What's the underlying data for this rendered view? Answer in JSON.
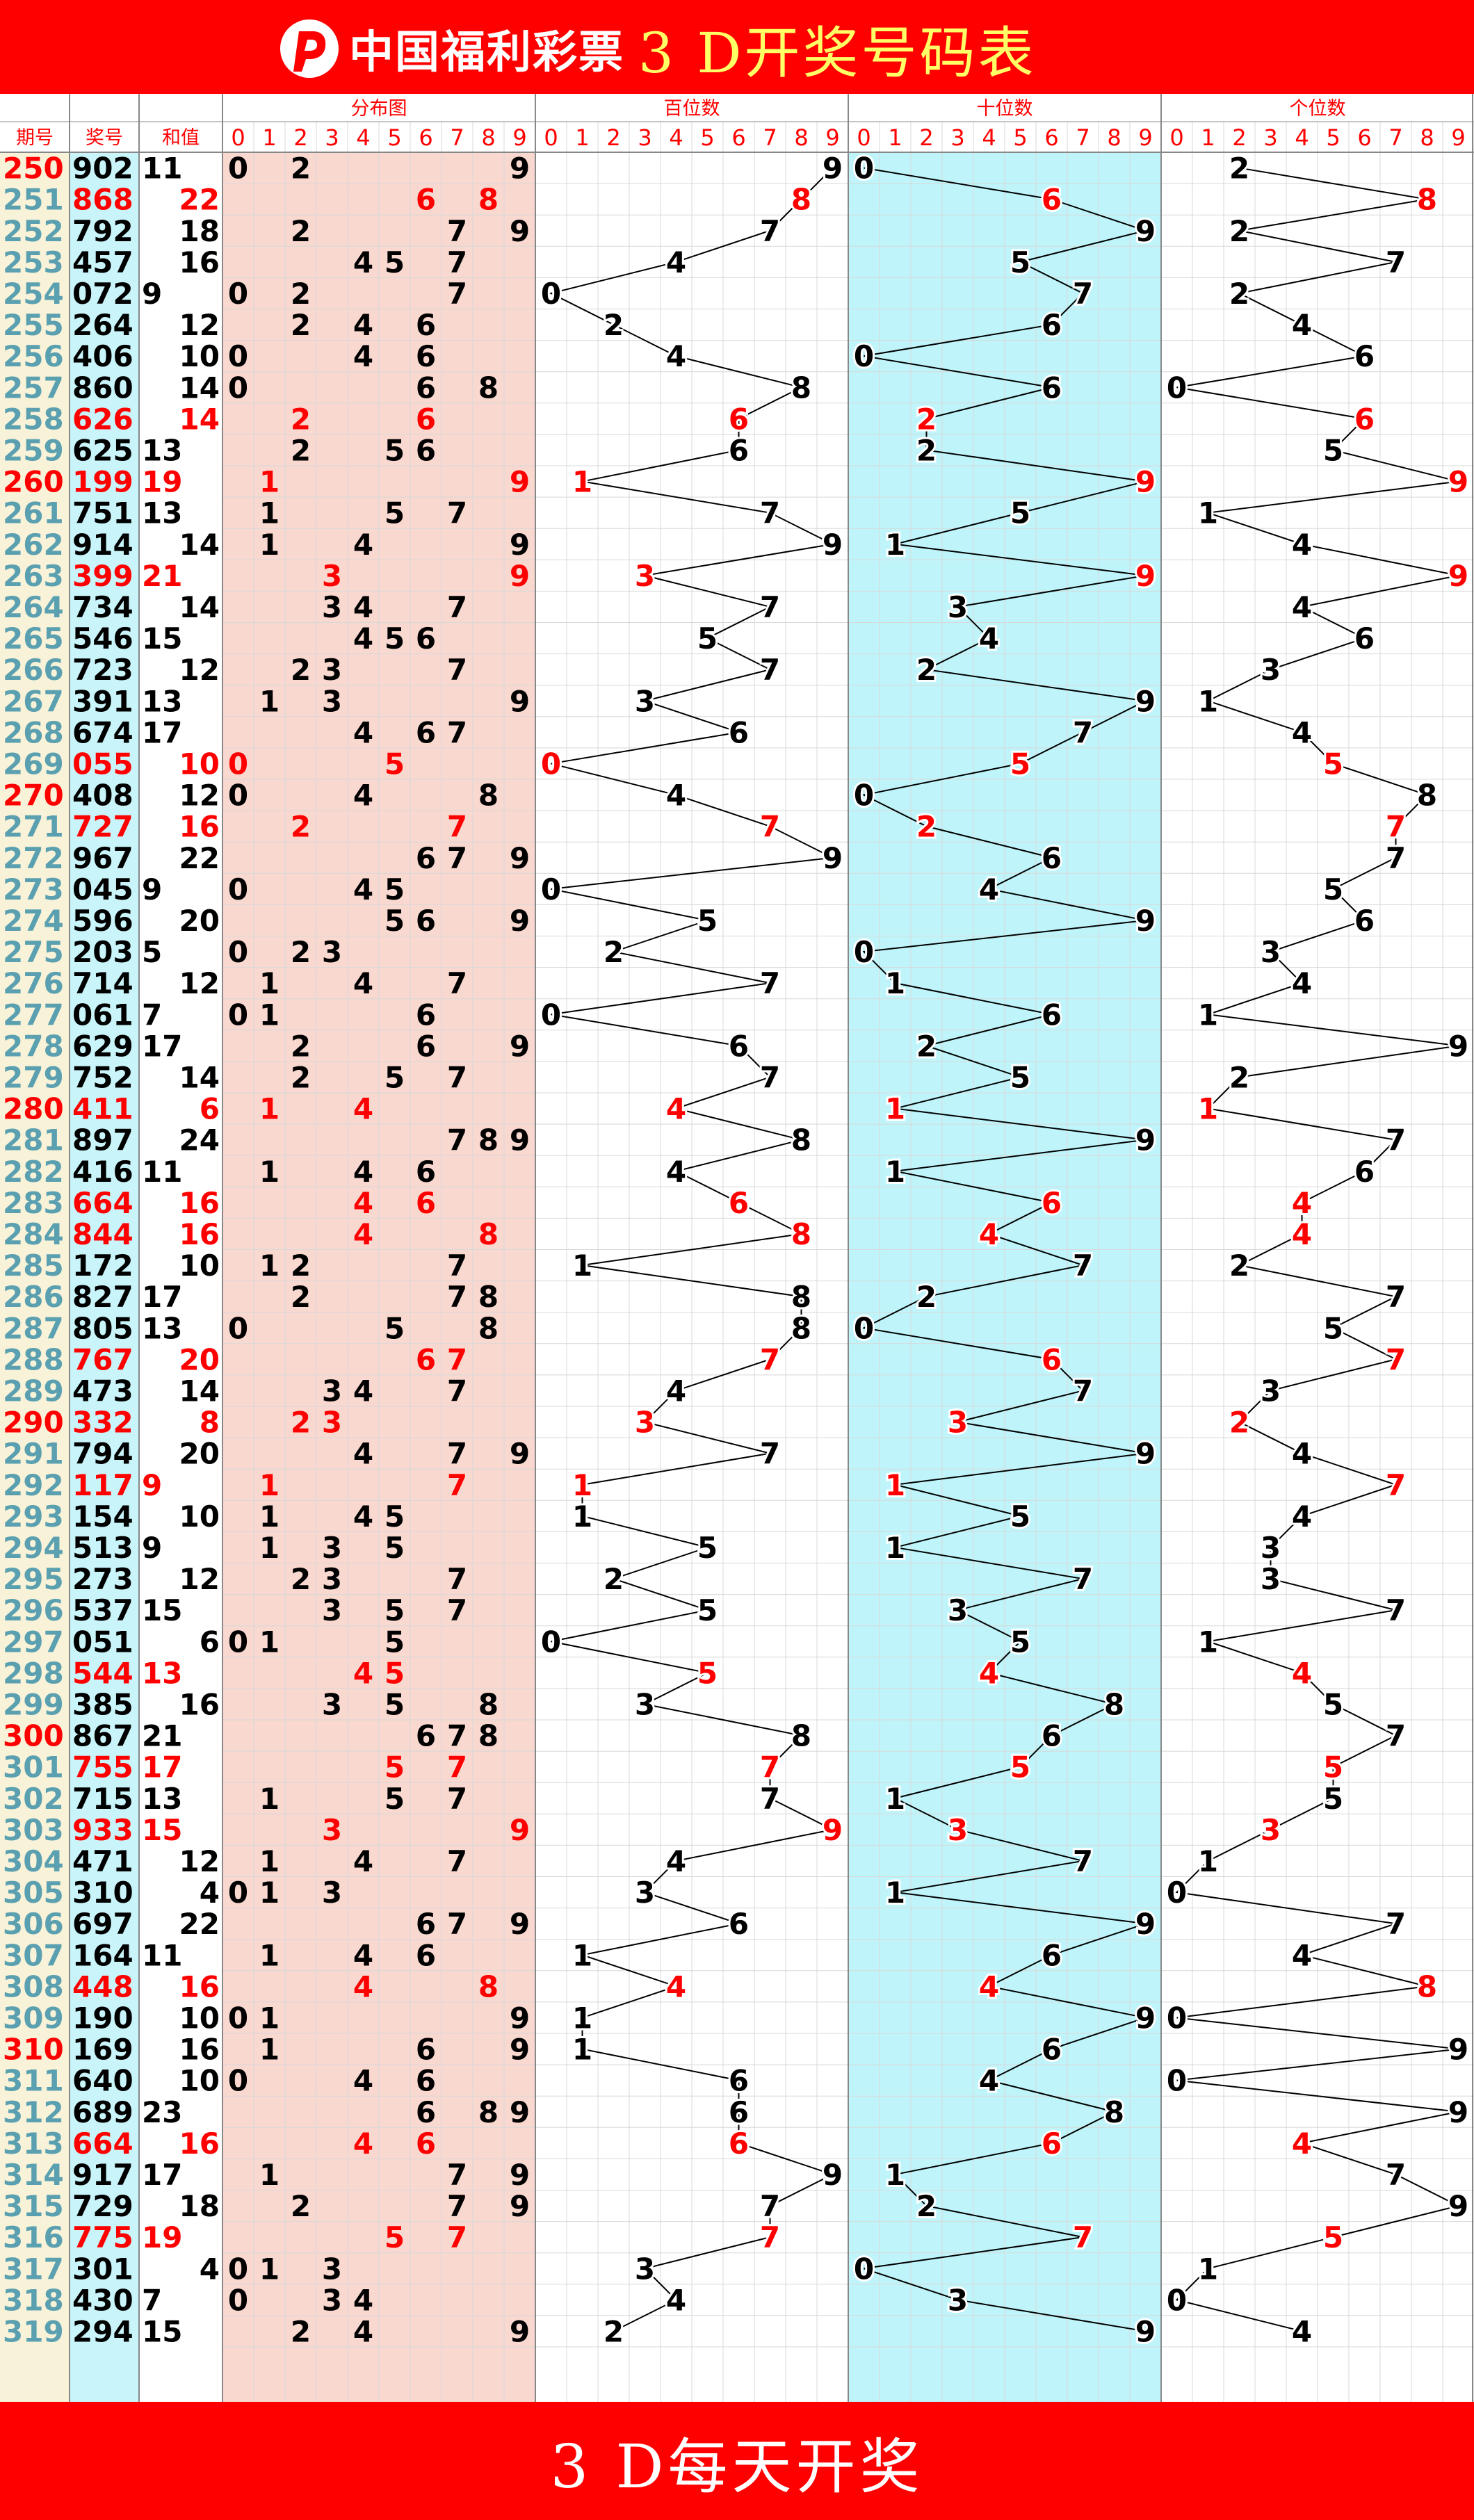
{
  "header": {
    "logo_text": "中国福利彩票",
    "title": "3 D开奖号码表"
  },
  "footer": {
    "text": "3 D每天开奖"
  },
  "columns": {
    "period": "期号",
    "draw": "奖号",
    "sum": "和值",
    "distribution": "分布图",
    "hundreds": "百位数",
    "tens": "十位数",
    "ones": "个位数",
    "digits": [
      "0",
      "1",
      "2",
      "3",
      "4",
      "5",
      "6",
      "7",
      "8",
      "9"
    ]
  },
  "colors": {
    "header_bg": "#ff0000",
    "title": "#ffff66",
    "highlight": "#ff0000",
    "period_text": "#5aa0b0",
    "period_bg": "#f7f2d8",
    "draw_bg": "#c9f5fa",
    "distribution_bg": "#f9d8d0",
    "tens_bg": "#bff5fa"
  },
  "chart_data": {
    "type": "table",
    "sum_layout": "odd sums are printed left-aligned and even sums right-aligned in the sum column",
    "rows": [
      {
        "period": "250",
        "draw": "902",
        "sum": "11",
        "red": false,
        "period_red": true
      },
      {
        "period": "251",
        "draw": "868",
        "sum": "22",
        "red": true,
        "period_red": false
      },
      {
        "period": "252",
        "draw": "792",
        "sum": "18",
        "red": false,
        "period_red": false
      },
      {
        "period": "253",
        "draw": "457",
        "sum": "16",
        "red": false,
        "period_red": false
      },
      {
        "period": "254",
        "draw": "072",
        "sum": "9",
        "red": false,
        "period_red": false
      },
      {
        "period": "255",
        "draw": "264",
        "sum": "12",
        "red": false,
        "period_red": false
      },
      {
        "period": "256",
        "draw": "406",
        "sum": "10",
        "red": false,
        "period_red": false
      },
      {
        "period": "257",
        "draw": "860",
        "sum": "14",
        "red": false,
        "period_red": false
      },
      {
        "period": "258",
        "draw": "626",
        "sum": "14",
        "red": true,
        "period_red": false
      },
      {
        "period": "259",
        "draw": "625",
        "sum": "13",
        "red": false,
        "period_red": false
      },
      {
        "period": "260",
        "draw": "199",
        "sum": "19",
        "red": true,
        "period_red": true
      },
      {
        "period": "261",
        "draw": "751",
        "sum": "13",
        "red": false,
        "period_red": false
      },
      {
        "period": "262",
        "draw": "914",
        "sum": "14",
        "red": false,
        "period_red": false
      },
      {
        "period": "263",
        "draw": "399",
        "sum": "21",
        "red": true,
        "period_red": false
      },
      {
        "period": "264",
        "draw": "734",
        "sum": "14",
        "red": false,
        "period_red": false
      },
      {
        "period": "265",
        "draw": "546",
        "sum": "15",
        "red": false,
        "period_red": false
      },
      {
        "period": "266",
        "draw": "723",
        "sum": "12",
        "red": false,
        "period_red": false
      },
      {
        "period": "267",
        "draw": "391",
        "sum": "13",
        "red": false,
        "period_red": false
      },
      {
        "period": "268",
        "draw": "674",
        "sum": "17",
        "red": false,
        "period_red": false
      },
      {
        "period": "269",
        "draw": "055",
        "sum": "10",
        "red": true,
        "period_red": false
      },
      {
        "period": "270",
        "draw": "408",
        "sum": "12",
        "red": false,
        "period_red": true
      },
      {
        "period": "271",
        "draw": "727",
        "sum": "16",
        "red": true,
        "period_red": false
      },
      {
        "period": "272",
        "draw": "967",
        "sum": "22",
        "red": false,
        "period_red": false
      },
      {
        "period": "273",
        "draw": "045",
        "sum": "9",
        "red": false,
        "period_red": false
      },
      {
        "period": "274",
        "draw": "596",
        "sum": "20",
        "red": false,
        "period_red": false
      },
      {
        "period": "275",
        "draw": "203",
        "sum": "5",
        "red": false,
        "period_red": false
      },
      {
        "period": "276",
        "draw": "714",
        "sum": "12",
        "red": false,
        "period_red": false
      },
      {
        "period": "277",
        "draw": "061",
        "sum": "7",
        "red": false,
        "period_red": false
      },
      {
        "period": "278",
        "draw": "629",
        "sum": "17",
        "red": false,
        "period_red": false
      },
      {
        "period": "279",
        "draw": "752",
        "sum": "14",
        "red": false,
        "period_red": false
      },
      {
        "period": "280",
        "draw": "411",
        "sum": "6",
        "red": true,
        "period_red": true
      },
      {
        "period": "281",
        "draw": "897",
        "sum": "24",
        "red": false,
        "period_red": false
      },
      {
        "period": "282",
        "draw": "416",
        "sum": "11",
        "red": false,
        "period_red": false
      },
      {
        "period": "283",
        "draw": "664",
        "sum": "16",
        "red": true,
        "period_red": false
      },
      {
        "period": "284",
        "draw": "844",
        "sum": "16",
        "red": true,
        "period_red": false
      },
      {
        "period": "285",
        "draw": "172",
        "sum": "10",
        "red": false,
        "period_red": false
      },
      {
        "period": "286",
        "draw": "827",
        "sum": "17",
        "red": false,
        "period_red": false
      },
      {
        "period": "287",
        "draw": "805",
        "sum": "13",
        "red": false,
        "period_red": false
      },
      {
        "period": "288",
        "draw": "767",
        "sum": "20",
        "red": true,
        "period_red": false
      },
      {
        "period": "289",
        "draw": "473",
        "sum": "14",
        "red": false,
        "period_red": false
      },
      {
        "period": "290",
        "draw": "332",
        "sum": "8",
        "red": true,
        "period_red": true
      },
      {
        "period": "291",
        "draw": "794",
        "sum": "20",
        "red": false,
        "period_red": false
      },
      {
        "period": "292",
        "draw": "117",
        "sum": "9",
        "red": true,
        "period_red": false
      },
      {
        "period": "293",
        "draw": "154",
        "sum": "10",
        "red": false,
        "period_red": false
      },
      {
        "period": "294",
        "draw": "513",
        "sum": "9",
        "red": false,
        "period_red": false
      },
      {
        "period": "295",
        "draw": "273",
        "sum": "12",
        "red": false,
        "period_red": false
      },
      {
        "period": "296",
        "draw": "537",
        "sum": "15",
        "red": false,
        "period_red": false
      },
      {
        "period": "297",
        "draw": "051",
        "sum": "6",
        "red": false,
        "period_red": false
      },
      {
        "period": "298",
        "draw": "544",
        "sum": "13",
        "red": true,
        "period_red": false
      },
      {
        "period": "299",
        "draw": "385",
        "sum": "16",
        "red": false,
        "period_red": false
      },
      {
        "period": "300",
        "draw": "867",
        "sum": "21",
        "red": false,
        "period_red": true
      },
      {
        "period": "301",
        "draw": "755",
        "sum": "17",
        "red": true,
        "period_red": false
      },
      {
        "period": "302",
        "draw": "715",
        "sum": "13",
        "red": false,
        "period_red": false
      },
      {
        "period": "303",
        "draw": "933",
        "sum": "15",
        "red": true,
        "period_red": false
      },
      {
        "period": "304",
        "draw": "471",
        "sum": "12",
        "red": false,
        "period_red": false
      },
      {
        "period": "305",
        "draw": "310",
        "sum": "4",
        "red": false,
        "period_red": false
      },
      {
        "period": "306",
        "draw": "697",
        "sum": "22",
        "red": false,
        "period_red": false
      },
      {
        "period": "307",
        "draw": "164",
        "sum": "11",
        "red": false,
        "period_red": false
      },
      {
        "period": "308",
        "draw": "448",
        "sum": "16",
        "red": true,
        "period_red": false
      },
      {
        "period": "309",
        "draw": "190",
        "sum": "10",
        "red": false,
        "period_red": false
      },
      {
        "period": "310",
        "draw": "169",
        "sum": "16",
        "red": false,
        "period_red": true
      },
      {
        "period": "311",
        "draw": "640",
        "sum": "10",
        "red": false,
        "period_red": false
      },
      {
        "period": "312",
        "draw": "689",
        "sum": "23",
        "red": false,
        "period_red": false
      },
      {
        "period": "313",
        "draw": "664",
        "sum": "16",
        "red": true,
        "period_red": false
      },
      {
        "period": "314",
        "draw": "917",
        "sum": "17",
        "red": false,
        "period_red": false
      },
      {
        "period": "315",
        "draw": "729",
        "sum": "18",
        "red": false,
        "period_red": false
      },
      {
        "period": "316",
        "draw": "775",
        "sum": "19",
        "red": true,
        "period_red": false
      },
      {
        "period": "317",
        "draw": "301",
        "sum": "4",
        "red": false,
        "period_red": false
      },
      {
        "period": "318",
        "draw": "430",
        "sum": "7",
        "red": false,
        "period_red": false
      },
      {
        "period": "319",
        "draw": "294",
        "sum": "15",
        "red": false,
        "period_red": false
      }
    ]
  }
}
